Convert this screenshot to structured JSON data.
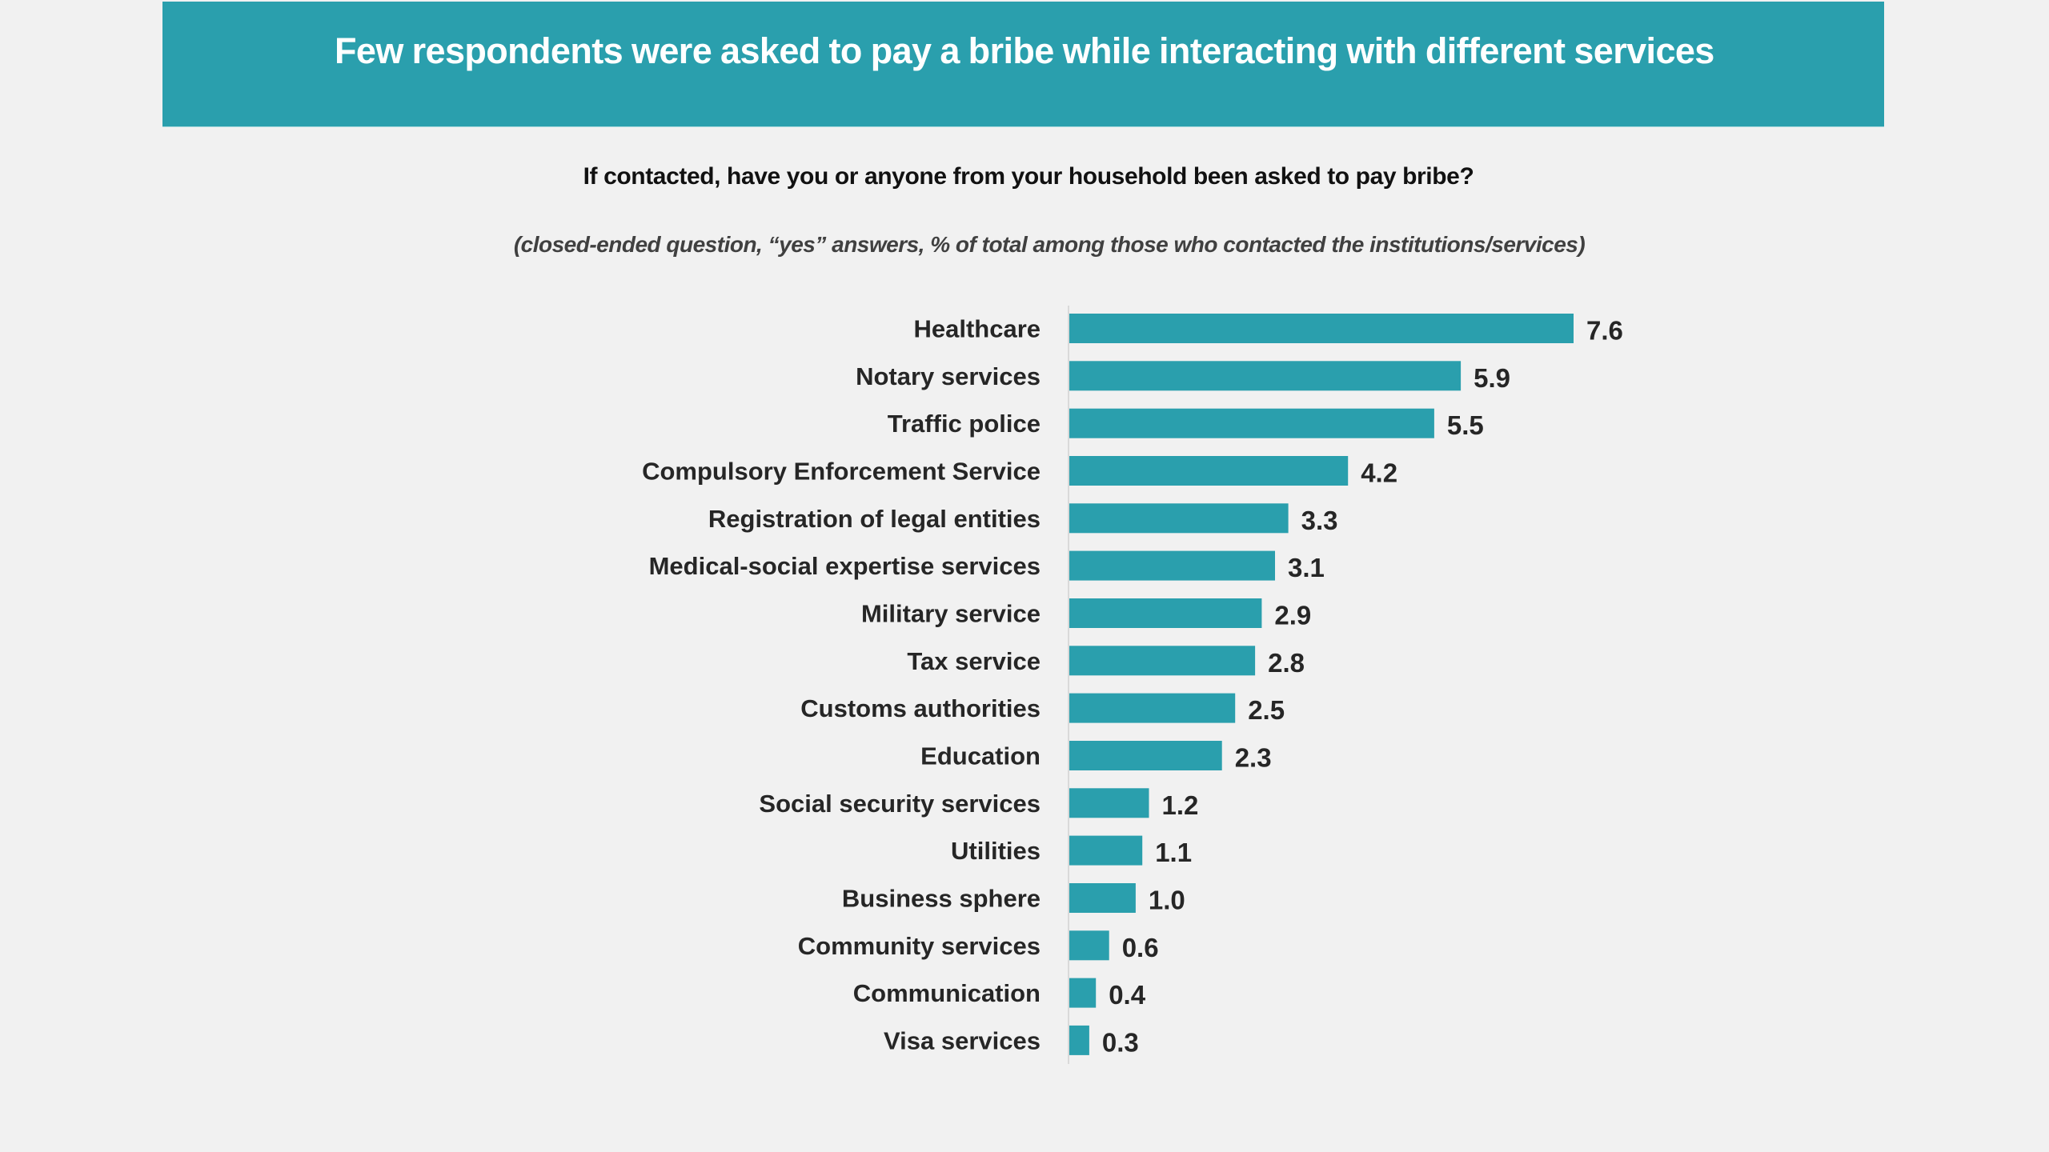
{
  "header": {
    "title": "Few respondents were asked to pay a bribe while interacting with different services",
    "banner_color": "#2a9fad"
  },
  "question": "If contacted, have you or anyone from your household been asked to pay bribe?",
  "note": "(closed-ended question, “yes” answers, % of  total among those who contacted the institutions/services)",
  "chart_data": {
    "type": "bar",
    "orientation": "horizontal",
    "title": "Few respondents were asked to pay a bribe while interacting with different services",
    "subtitle": "If contacted, have you or anyone from your household been asked to pay bribe?",
    "note": "(closed-ended question, “yes” answers, % of  total among those who contacted the institutions/services)",
    "xlabel": "",
    "ylabel": "",
    "unit": "%",
    "xlim": [
      0,
      7.6
    ],
    "grid": false,
    "legend": "none",
    "bar_color": "#2a9fad",
    "categories": [
      "Healthcare",
      "Notary services",
      "Traffic police",
      "Compulsory Enforcement Service",
      "Registration of legal entities",
      "Medical-social expertise services",
      "Military service",
      "Tax service",
      "Customs authorities",
      "Education",
      "Social security services",
      "Utilities",
      "Business sphere",
      "Community services",
      "Communication",
      "Visa services"
    ],
    "values": [
      7.6,
      5.9,
      5.5,
      4.2,
      3.3,
      3.1,
      2.9,
      2.8,
      2.5,
      2.3,
      1.2,
      1.1,
      1.0,
      0.6,
      0.4,
      0.3
    ],
    "value_labels": [
      "7.6",
      "5.9",
      "5.5",
      "4.2",
      "3.3",
      "3.1",
      "2.9",
      "2.8",
      "2.5",
      "2.3",
      "1.2",
      "1.1",
      "1.0",
      "0.6",
      "0.4",
      "0.3"
    ]
  }
}
